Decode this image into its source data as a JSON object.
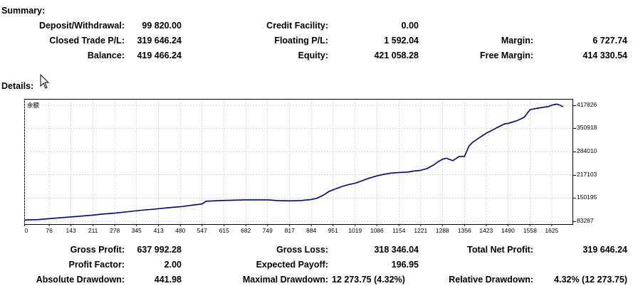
{
  "summary": {
    "title": "Summary:",
    "deposit_withdrawal": {
      "label": "Deposit/Withdrawal:",
      "value": "99 820.00"
    },
    "closed_trade_pl": {
      "label": "Closed Trade P/L:",
      "value": "319 646.24"
    },
    "balance": {
      "label": "Balance:",
      "value": "419 466.24"
    },
    "credit_facility": {
      "label": "Credit Facility:",
      "value": "0.00"
    },
    "floating_pl": {
      "label": "Floating P/L:",
      "value": "1 592.04"
    },
    "equity": {
      "label": "Equity:",
      "value": "421 058.28"
    },
    "margin": {
      "label": "Margin:",
      "value": "6 727.74"
    },
    "free_margin": {
      "label": "Free Margin:",
      "value": "414 330.54"
    }
  },
  "details": {
    "title": "Details:"
  },
  "chart_data": {
    "type": "line",
    "series_label": "余额",
    "x_ticks": [
      0,
      76,
      143,
      211,
      278,
      345,
      413,
      480,
      547,
      615,
      682,
      749,
      817,
      884,
      951,
      1019,
      1086,
      1154,
      1221,
      1288,
      1356,
      1423,
      1490,
      1558,
      1625
    ],
    "y_ticks": [
      83287,
      150195,
      217103,
      284010,
      350918,
      417826
    ],
    "xlim": [
      0,
      1690
    ],
    "ylim": [
      74000,
      435000
    ],
    "grid": true,
    "line_color": "#000080",
    "series": [
      {
        "x": [
          0,
          40,
          80,
          120,
          160,
          200,
          240,
          280,
          320,
          360,
          400,
          440,
          480,
          520,
          547,
          560,
          600,
          640,
          680,
          720,
          749,
          780,
          817,
          850,
          884,
          900,
          920,
          940,
          960,
          980,
          1000,
          1019,
          1040,
          1060,
          1086,
          1110,
          1130,
          1154,
          1180,
          1200,
          1221,
          1240,
          1260,
          1275,
          1288,
          1300,
          1320,
          1340,
          1356,
          1370,
          1380,
          1400,
          1423,
          1440,
          1460,
          1480,
          1490,
          1500,
          1520,
          1540,
          1558,
          1580,
          1600,
          1615,
          1625,
          1640,
          1650,
          1660
        ],
        "y": [
          87000,
          88000,
          91000,
          94000,
          97000,
          100000,
          104000,
          107000,
          111000,
          115000,
          118000,
          122000,
          125000,
          130000,
          133000,
          141000,
          143000,
          144000,
          145000,
          145000,
          145000,
          143000,
          142000,
          143000,
          146000,
          149000,
          158000,
          170000,
          177000,
          184000,
          189000,
          193000,
          200000,
          207000,
          214000,
          219000,
          222000,
          224000,
          225000,
          228000,
          230000,
          235000,
          245000,
          255000,
          262000,
          265000,
          258000,
          270000,
          270000,
          300000,
          310000,
          323000,
          337000,
          345000,
          355000,
          364000,
          365000,
          368000,
          374000,
          383000,
          405000,
          409000,
          412000,
          414000,
          418000,
          421000,
          418000,
          413000
        ]
      }
    ]
  },
  "stats": {
    "gross_profit": {
      "label": "Gross Profit:",
      "value": "637 992.28"
    },
    "profit_factor": {
      "label": "Profit Factor:",
      "value": "2.00"
    },
    "absolute_drawdown": {
      "label": "Absolute Drawdown:",
      "value": "441.98"
    },
    "gross_loss": {
      "label": "Gross Loss:",
      "value": "318 346.04"
    },
    "expected_payoff": {
      "label": "Expected Payoff:",
      "value": "196.95"
    },
    "maximal_drawdown": {
      "label": "Maximal Drawdown:",
      "value": "12 273.75 (4.32%)"
    },
    "total_net_profit": {
      "label": "Total Net Profit:",
      "value": "319 646.24"
    },
    "relative_drawdown": {
      "label": "Relative Drawdown:",
      "value": "4.32% (12 273.75)"
    }
  }
}
